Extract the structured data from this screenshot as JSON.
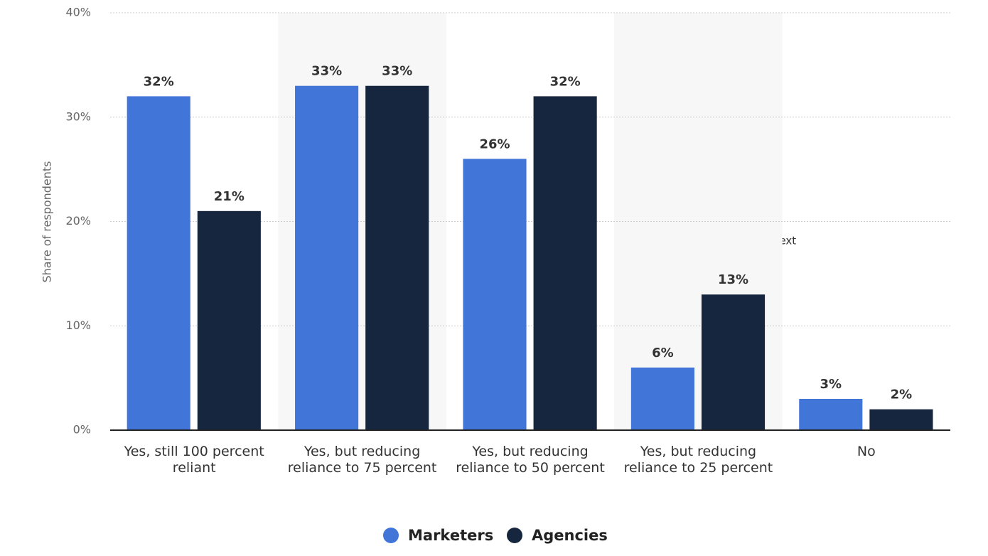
{
  "chart_data": {
    "type": "bar",
    "y_label": "Share of respondents",
    "annotation": "Text",
    "categories": [
      "Yes, still 100 percent reliant",
      "Yes, but reducing reliance to 75 percent",
      "Yes, but reducing reliance to 50 percent",
      "Yes, but reducing reliance to 25 percent",
      "No"
    ],
    "series": [
      {
        "name": "Marketers",
        "color": "#4175d8",
        "values": [
          32,
          33,
          26,
          6,
          3
        ],
        "value_labels": [
          "32%",
          "33%",
          "26%",
          "6%",
          "3%"
        ]
      },
      {
        "name": "Agencies",
        "color": "#16263e",
        "values": [
          21,
          33,
          32,
          13,
          2
        ],
        "value_labels": [
          "21%",
          "33%",
          "32%",
          "13%",
          "2%"
        ]
      }
    ],
    "ylim": [
      0,
      40
    ],
    "yticks": [
      {
        "value": 0,
        "label": "0%"
      },
      {
        "value": 10,
        "label": "10%"
      },
      {
        "value": 20,
        "label": "20%"
      },
      {
        "value": 30,
        "label": "30%"
      },
      {
        "value": 40,
        "label": "40%"
      }
    ],
    "grid": true,
    "legend": "bottom"
  }
}
